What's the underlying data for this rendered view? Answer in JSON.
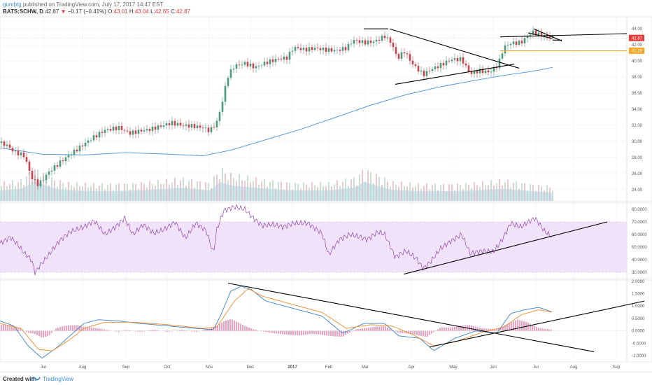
{
  "header": {
    "author": "gumbtg",
    "published_text": "published on TradingView.com, July 17, 2017 14:47 EST",
    "symbol": "BATS:SCHW, D",
    "last": "42.87",
    "change": "−0.17 (−0.41%)",
    "o_label": "O:",
    "o_value": "43.01",
    "h_label": "H:",
    "h_value": "43.04",
    "l_label": "L:",
    "l_value": "42.65",
    "c_label": "C:",
    "c_value": "42.87"
  },
  "footer": {
    "created_with": "Created with",
    "brand": "TradingView"
  },
  "colors": {
    "up_candle": "#4a9a7c",
    "down_candle": "#c9424e",
    "ma_line": "#5b9bd5",
    "volume": "#9fd3f0",
    "rsi_line": "#8e44ad",
    "rsi_band": "#ecdcf7",
    "macd_line": "#3b82c4",
    "signal_line": "#f08a2a",
    "histogram": "#e0558a",
    "last_price_tag": "#e53935",
    "level_tag": "#f5a623"
  },
  "chart_data": [
    {
      "type": "candlestick",
      "panel": "price",
      "ylim": [
        22.5,
        45.5
      ],
      "y_ticks": [
        "24.00",
        "26.00",
        "28.00",
        "30.00",
        "32.00",
        "34.00",
        "36.00",
        "38.00",
        "40.00",
        "42.00",
        "44.00"
      ],
      "last_price_label": "42.87",
      "level_label": "41.28",
      "x_ticks": [
        "Jul",
        "Aug",
        "Sep",
        "Oct",
        "Nov",
        "Dec",
        "2017",
        "Feb",
        "Mar",
        "Apr",
        "May",
        "Jun",
        "Jul",
        "Aug",
        "Sep"
      ],
      "price_path": [
        [
          0,
          29.8
        ],
        [
          10,
          29.5
        ],
        [
          20,
          28.7
        ],
        [
          35,
          28.2
        ],
        [
          45,
          25.5
        ],
        [
          55,
          24.6
        ],
        [
          70,
          26.2
        ],
        [
          90,
          27.7
        ],
        [
          110,
          29.0
        ],
        [
          130,
          30.3
        ],
        [
          150,
          31.4
        ],
        [
          170,
          31.7
        ],
        [
          185,
          31.0
        ],
        [
          200,
          31.3
        ],
        [
          215,
          31.5
        ],
        [
          230,
          31.9
        ],
        [
          245,
          32.3
        ],
        [
          260,
          32.0
        ],
        [
          275,
          31.9
        ],
        [
          290,
          31.7
        ],
        [
          300,
          31.3
        ],
        [
          310,
          32.4
        ],
        [
          318,
          35.0
        ],
        [
          325,
          38.0
        ],
        [
          335,
          39.4
        ],
        [
          350,
          39.7
        ],
        [
          365,
          39.2
        ],
        [
          380,
          39.8
        ],
        [
          395,
          40.2
        ],
        [
          410,
          40.4
        ],
        [
          420,
          41.7
        ],
        [
          435,
          41.4
        ],
        [
          450,
          41.6
        ],
        [
          465,
          41.4
        ],
        [
          480,
          41.3
        ],
        [
          495,
          41.6
        ],
        [
          505,
          42.6
        ],
        [
          520,
          42.3
        ],
        [
          535,
          42.4
        ],
        [
          550,
          43.1
        ],
        [
          560,
          42.2
        ],
        [
          568,
          40.3
        ],
        [
          578,
          41.2
        ],
        [
          590,
          39.6
        ],
        [
          605,
          38.3
        ],
        [
          615,
          38.9
        ],
        [
          630,
          39.5
        ],
        [
          645,
          40.2
        ],
        [
          660,
          40.2
        ],
        [
          672,
          38.4
        ],
        [
          685,
          38.8
        ],
        [
          700,
          38.6
        ],
        [
          712,
          39.5
        ],
        [
          720,
          41.7
        ],
        [
          730,
          42.2
        ],
        [
          745,
          42.3
        ],
        [
          755,
          43.2
        ],
        [
          762,
          43.6
        ],
        [
          770,
          43.3
        ],
        [
          780,
          43.1
        ],
        [
          790,
          42.87
        ]
      ],
      "moving_average": [
        [
          0,
          29.2
        ],
        [
          60,
          28.4
        ],
        [
          120,
          28.3
        ],
        [
          180,
          28.6
        ],
        [
          240,
          28.4
        ],
        [
          290,
          28.2
        ],
        [
          330,
          28.9
        ],
        [
          380,
          30.2
        ],
        [
          430,
          31.5
        ],
        [
          480,
          33.0
        ],
        [
          530,
          34.5
        ],
        [
          580,
          35.8
        ],
        [
          630,
          36.8
        ],
        [
          680,
          37.6
        ],
        [
          720,
          38.2
        ],
        [
          760,
          38.7
        ],
        [
          790,
          39.2
        ]
      ],
      "volume_peaks": [
        [
          0,
          0.3
        ],
        [
          30,
          0.35
        ],
        [
          50,
          0.55
        ],
        [
          65,
          0.45
        ],
        [
          80,
          0.35
        ],
        [
          100,
          0.3
        ],
        [
          150,
          0.28
        ],
        [
          200,
          0.3
        ],
        [
          260,
          0.38
        ],
        [
          300,
          0.3
        ],
        [
          315,
          0.55
        ],
        [
          330,
          0.45
        ],
        [
          345,
          0.42
        ],
        [
          380,
          0.35
        ],
        [
          420,
          0.3
        ],
        [
          470,
          0.3
        ],
        [
          510,
          0.4
        ],
        [
          520,
          0.55
        ],
        [
          560,
          0.32
        ],
        [
          600,
          0.28
        ],
        [
          640,
          0.28
        ],
        [
          680,
          0.3
        ],
        [
          720,
          0.35
        ],
        [
          760,
          0.28
        ],
        [
          790,
          0.24
        ]
      ],
      "trendlines": [
        [
          [
            520,
            44.0
          ],
          [
            555,
            44.0
          ]
        ],
        [
          [
            557,
            44.0
          ],
          [
            742,
            39.1
          ]
        ],
        [
          [
            565,
            37.1
          ],
          [
            735,
            39.6
          ]
        ],
        [
          [
            715,
            43.0
          ],
          [
            896,
            43.4
          ]
        ],
        [
          [
            763,
            44.0
          ],
          [
            803,
            42.5
          ]
        ],
        [
          [
            755,
            43.5
          ],
          [
            789,
            42.8
          ]
        ],
        [
          [
            790,
            42.6
          ],
          [
            803,
            42.6
          ]
        ]
      ],
      "level_line": [
        715,
        896,
        41.28
      ]
    },
    {
      "type": "line",
      "panel": "rsi",
      "ylim": [
        25,
        85
      ],
      "y_ticks": [
        "30.0000",
        "40.0000",
        "50.0000",
        "60.0000",
        "70.0000",
        "80.0000"
      ],
      "band": [
        30,
        70
      ],
      "series": [
        [
          0,
          53
        ],
        [
          15,
          58
        ],
        [
          25,
          52
        ],
        [
          35,
          45
        ],
        [
          45,
          40
        ],
        [
          50,
          30
        ],
        [
          58,
          36
        ],
        [
          70,
          44
        ],
        [
          85,
          55
        ],
        [
          100,
          62
        ],
        [
          120,
          66
        ],
        [
          135,
          71
        ],
        [
          150,
          60
        ],
        [
          165,
          66
        ],
        [
          178,
          73
        ],
        [
          190,
          60
        ],
        [
          205,
          68
        ],
        [
          220,
          61
        ],
        [
          235,
          64
        ],
        [
          250,
          70
        ],
        [
          265,
          57
        ],
        [
          280,
          69
        ],
        [
          295,
          63
        ],
        [
          305,
          45
        ],
        [
          310,
          64
        ],
        [
          320,
          79
        ],
        [
          335,
          82
        ],
        [
          350,
          80
        ],
        [
          360,
          74
        ],
        [
          375,
          67
        ],
        [
          390,
          68
        ],
        [
          405,
          66
        ],
        [
          420,
          69
        ],
        [
          440,
          69
        ],
        [
          460,
          61
        ],
        [
          470,
          44
        ],
        [
          485,
          56
        ],
        [
          500,
          60
        ],
        [
          515,
          58
        ],
        [
          525,
          56
        ],
        [
          540,
          62
        ],
        [
          550,
          60
        ],
        [
          565,
          42
        ],
        [
          580,
          47
        ],
        [
          595,
          41
        ],
        [
          605,
          33
        ],
        [
          615,
          38
        ],
        [
          630,
          49
        ],
        [
          645,
          55
        ],
        [
          660,
          60
        ],
        [
          672,
          45
        ],
        [
          690,
          47
        ],
        [
          705,
          46
        ],
        [
          718,
          56
        ],
        [
          730,
          69
        ],
        [
          745,
          66
        ],
        [
          755,
          70
        ],
        [
          765,
          73
        ],
        [
          778,
          63
        ],
        [
          789,
          58
        ]
      ],
      "trendlines": [
        [
          [
            577,
            28.5
          ],
          [
            868,
            70
          ]
        ]
      ]
    },
    {
      "type": "line",
      "panel": "macd",
      "ylim": [
        -1.25,
        2.05
      ],
      "y_ticks": [
        "-1.0000",
        "-0.5000",
        "0.0000",
        "0.5000",
        "1.0000",
        "1.5000",
        "2.0000"
      ],
      "series": [
        {
          "values": [
            [
              0,
              0.4
            ],
            [
              20,
              0.2
            ],
            [
              40,
              -0.6
            ],
            [
              60,
              -1.1
            ],
            [
              80,
              -0.7
            ],
            [
              100,
              -0.2
            ],
            [
              120,
              0.3
            ],
            [
              140,
              0.45
            ],
            [
              170,
              0.4
            ],
            [
              200,
              0.3
            ],
            [
              240,
              0.2
            ],
            [
              280,
              0.1
            ],
            [
              305,
              0.05
            ],
            [
              315,
              0.6
            ],
            [
              330,
              1.6
            ],
            [
              345,
              1.8
            ],
            [
              360,
              1.65
            ],
            [
              380,
              1.2
            ],
            [
              420,
              0.9
            ],
            [
              460,
              0.6
            ],
            [
              490,
              -0.1
            ],
            [
              520,
              0.3
            ],
            [
              550,
              0.3
            ],
            [
              570,
              -0.2
            ],
            [
              600,
              -0.3
            ],
            [
              620,
              -0.8
            ],
            [
              650,
              -0.3
            ],
            [
              680,
              0.0
            ],
            [
              710,
              -0.1
            ],
            [
              730,
              0.7
            ],
            [
              750,
              0.85
            ],
            [
              770,
              0.95
            ],
            [
              790,
              0.75
            ]
          ]
        },
        {
          "values": [
            [
              0,
              0.3
            ],
            [
              30,
              0.1
            ],
            [
              55,
              -0.75
            ],
            [
              75,
              -0.8
            ],
            [
              100,
              -0.35
            ],
            [
              120,
              0.1
            ],
            [
              150,
              0.35
            ],
            [
              190,
              0.35
            ],
            [
              240,
              0.25
            ],
            [
              290,
              0.1
            ],
            [
              310,
              0.15
            ],
            [
              335,
              1.2
            ],
            [
              355,
              1.7
            ],
            [
              375,
              1.4
            ],
            [
              420,
              1.05
            ],
            [
              460,
              0.75
            ],
            [
              495,
              0.1
            ],
            [
              530,
              0.25
            ],
            [
              560,
              0.2
            ],
            [
              590,
              -0.15
            ],
            [
              620,
              -0.6
            ],
            [
              650,
              -0.45
            ],
            [
              690,
              -0.05
            ],
            [
              720,
              0.15
            ],
            [
              745,
              0.65
            ],
            [
              770,
              0.85
            ],
            [
              790,
              0.75
            ]
          ]
        }
      ],
      "histogram": [
        [
          10,
          0.25
        ],
        [
          20,
          0.2
        ],
        [
          30,
          0.1
        ],
        [
          40,
          -0.1
        ],
        [
          50,
          -0.15
        ],
        [
          60,
          -0.3
        ],
        [
          70,
          -0.2
        ],
        [
          80,
          0.1
        ],
        [
          90,
          0.2
        ],
        [
          100,
          0.25
        ],
        [
          110,
          0.3
        ],
        [
          120,
          0.2
        ],
        [
          130,
          0.15
        ],
        [
          140,
          0.1
        ],
        [
          150,
          0.05
        ],
        [
          160,
          0.0
        ],
        [
          170,
          -0.05
        ],
        [
          180,
          0.05
        ],
        [
          200,
          -0.05
        ],
        [
          220,
          0.05
        ],
        [
          240,
          -0.05
        ],
        [
          260,
          0.05
        ],
        [
          280,
          -0.05
        ],
        [
          300,
          0.1
        ],
        [
          310,
          0.3
        ],
        [
          320,
          0.45
        ],
        [
          330,
          0.5
        ],
        [
          340,
          0.35
        ],
        [
          350,
          0.2
        ],
        [
          360,
          0.1
        ],
        [
          370,
          0.0
        ],
        [
          390,
          -0.1
        ],
        [
          410,
          -0.15
        ],
        [
          430,
          -0.2
        ],
        [
          450,
          -0.15
        ],
        [
          470,
          -0.2
        ],
        [
          490,
          -0.25
        ],
        [
          510,
          0.1
        ],
        [
          530,
          0.15
        ],
        [
          550,
          0.2
        ],
        [
          570,
          -0.1
        ],
        [
          590,
          -0.15
        ],
        [
          610,
          -0.25
        ],
        [
          630,
          0.15
        ],
        [
          650,
          0.2
        ],
        [
          670,
          0.25
        ],
        [
          690,
          0.1
        ],
        [
          710,
          0.1
        ],
        [
          725,
          0.3
        ],
        [
          740,
          0.45
        ],
        [
          755,
          0.35
        ],
        [
          770,
          0.15
        ],
        [
          790,
          0.05
        ]
      ],
      "trendlines": [
        [
          [
            326,
            1.92
          ],
          [
            849,
            -0.84
          ]
        ],
        [
          [
            614,
            -0.65
          ],
          [
            921,
            1.2
          ]
        ]
      ]
    }
  ]
}
